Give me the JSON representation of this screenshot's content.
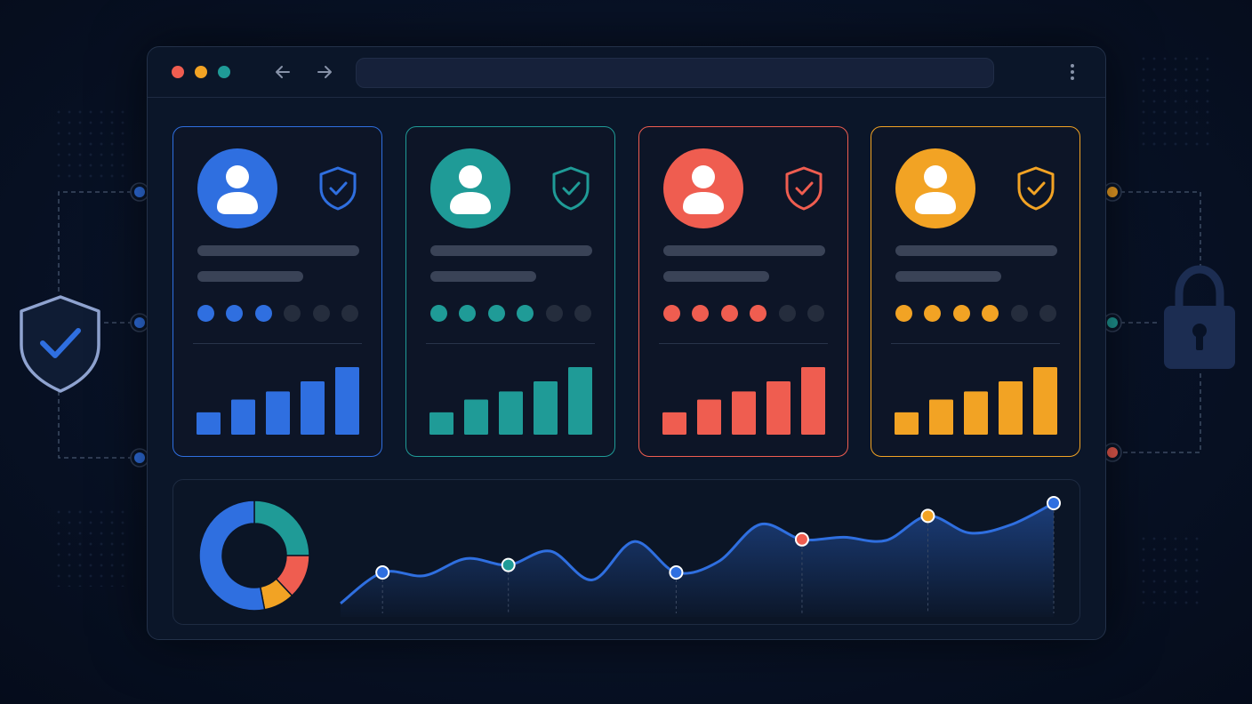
{
  "colors": {
    "background": "#081226",
    "blue": "#2f6fe0",
    "teal": "#1f9b97",
    "red": "#ef5d50",
    "orange": "#f2a324",
    "skeleton": "#3a4357",
    "rating_empty": "#252d3d"
  },
  "window_controls": [
    "close",
    "minimize",
    "maximize"
  ],
  "toolbar": {
    "icons": [
      "arrow-left-icon",
      "arrow-right-icon",
      "more-vertical-icon"
    ]
  },
  "cards": [
    {
      "accent": "#2f6fe0",
      "icon": "user-avatar-icon",
      "badge_icon": "shield-check-icon",
      "rating": 3,
      "rating_max": 6,
      "bars": [
        0.33,
        0.52,
        0.64,
        0.79,
        1.0
      ]
    },
    {
      "accent": "#1f9b97",
      "icon": "user-avatar-icon",
      "badge_icon": "shield-check-icon",
      "rating": 4,
      "rating_max": 6,
      "bars": [
        0.33,
        0.52,
        0.64,
        0.79,
        1.0
      ]
    },
    {
      "accent": "#ef5d50",
      "icon": "user-avatar-icon",
      "badge_icon": "shield-check-icon",
      "rating": 4,
      "rating_max": 6,
      "bars": [
        0.33,
        0.52,
        0.64,
        0.79,
        1.0
      ]
    },
    {
      "accent": "#f2a324",
      "icon": "user-avatar-icon",
      "badge_icon": "shield-check-icon",
      "rating": 4,
      "rating_max": 6,
      "bars": [
        0.33,
        0.52,
        0.64,
        0.79,
        1.0
      ]
    }
  ],
  "donut": {
    "segments": [
      {
        "color": "#2f6fe0",
        "value": 0.53
      },
      {
        "color": "#f2a324",
        "value": 0.09
      },
      {
        "color": "#ef5d50",
        "value": 0.13
      },
      {
        "color": "#1f9b97",
        "value": 0.25
      }
    ]
  },
  "trend": {
    "values": [
      0.06,
      0.35,
      0.32,
      0.48,
      0.42,
      0.55,
      0.28,
      0.64,
      0.35,
      0.45,
      0.8,
      0.66,
      0.68,
      0.65,
      0.88,
      0.72,
      0.8,
      1.0
    ],
    "markers": [
      {
        "index": 1,
        "color": "#2f6fe0"
      },
      {
        "index": 4,
        "color": "#1f9b97"
      },
      {
        "index": 8,
        "color": "#2f6fe0"
      },
      {
        "index": 11,
        "color": "#ef5d50"
      },
      {
        "index": 14,
        "color": "#f2a324"
      },
      {
        "index": 17,
        "color": "#2f6fe0"
      }
    ]
  },
  "side_connectors": {
    "left": [
      "#2f6fe0",
      "#2f6fe0",
      "#2f6fe0"
    ],
    "right": [
      "#f2a324",
      "#1f9b97",
      "#ef5d50"
    ]
  },
  "side_icons": {
    "left": "shield-check-icon",
    "right": "padlock-icon"
  }
}
